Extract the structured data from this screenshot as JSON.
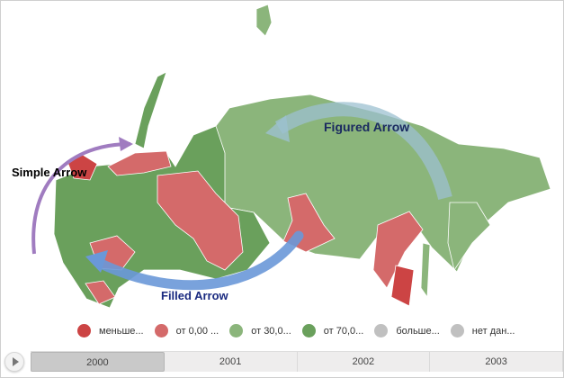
{
  "colors": {
    "less": "#cc4444",
    "from0": "#d46a6a",
    "from30": "#8bb57b",
    "from70": "#6aa05c",
    "more": "#c0c0c0",
    "nodata": "#c0c0c0",
    "simple_arrow": "#a07cc0",
    "filled_arrow": "#6a98d8",
    "figured_arrow": "#9cc0d0"
  },
  "annotations": {
    "simple": "Simple Arrow",
    "filled": "Filled Arrow",
    "figured": "Figured Arrow"
  },
  "legend": [
    {
      "label": "меньше...",
      "color": "#cc4444"
    },
    {
      "label": "от 0,00 ...",
      "color": "#d46a6a"
    },
    {
      "label": "от 30,0...",
      "color": "#8bb57b"
    },
    {
      "label": "от 70,0...",
      "color": "#6aa05c"
    },
    {
      "label": "больше...",
      "color": "#c0c0c0"
    },
    {
      "label": "нет дан...",
      "color": "#c0c0c0"
    }
  ],
  "timeline": {
    "play_icon": "play-icon",
    "years": [
      "2000",
      "2001",
      "2002",
      "2003"
    ],
    "selected": "2000"
  }
}
